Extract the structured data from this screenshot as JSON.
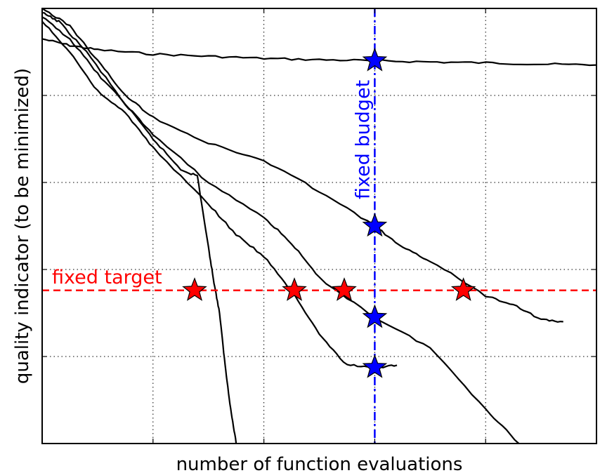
{
  "chart_data": {
    "type": "line",
    "xlabel": "number of function evaluations",
    "ylabel": "quality indicator (to be minimized)",
    "xlim": [
      0,
      10
    ],
    "ylim": [
      0,
      10
    ],
    "grid": true,
    "x_ticks": [
      0,
      2,
      4,
      6,
      8,
      10
    ],
    "y_ticks": [
      0,
      2,
      4,
      6,
      8,
      10
    ],
    "fixed_target": {
      "label": "fixed target",
      "y": 3.52,
      "color": "#ff0000"
    },
    "fixed_budget": {
      "label": "fixed budget",
      "x": 6.0,
      "color": "#0000ff"
    },
    "series": [
      {
        "x": [
          0,
          0.5,
          1.0,
          2.0,
          3.0,
          4.0,
          5.0,
          6.0,
          7.0,
          8.0,
          9.0,
          10.0
        ],
        "y": [
          9.3,
          9.15,
          9.05,
          8.95,
          8.9,
          8.85,
          8.82,
          8.8,
          8.77,
          8.75,
          8.72,
          8.7
        ]
      },
      {
        "x": [
          0,
          0.3,
          0.8,
          1.5,
          2.0,
          2.5,
          2.8,
          3.0,
          3.1,
          3.2,
          3.3,
          3.4,
          3.5
        ],
        "y": [
          9.9,
          9.7,
          9.0,
          7.8,
          7.0,
          6.3,
          6.15,
          4.5,
          3.7,
          3.0,
          1.8,
          0.8,
          0.0
        ]
      },
      {
        "x": [
          0,
          0.5,
          1.0,
          1.5,
          2.0,
          3.0,
          4.0,
          5.0,
          6.0,
          6.5,
          7.0,
          8.0,
          8.5,
          9.0,
          9.4
        ],
        "y": [
          10.0,
          9.6,
          8.8,
          8.0,
          7.5,
          6.9,
          6.5,
          5.8,
          5.0,
          4.5,
          4.2,
          3.4,
          3.2,
          2.85,
          2.8
        ]
      },
      {
        "x": [
          0,
          0.5,
          1.0,
          1.5,
          2.0,
          3.0,
          4.0,
          4.5,
          5.0,
          6.0,
          7.0,
          8.0,
          8.6
        ],
        "y": [
          9.8,
          9.3,
          8.5,
          7.8,
          7.1,
          6.0,
          5.2,
          4.6,
          3.8,
          2.9,
          2.2,
          0.8,
          0.0
        ]
      },
      {
        "x": [
          0,
          0.5,
          1.0,
          1.5,
          2.0,
          3.0,
          3.5,
          4.0,
          4.5,
          5.0,
          5.5,
          6.0,
          6.4
        ],
        "y": [
          9.7,
          9.0,
          8.1,
          7.6,
          6.8,
          5.5,
          4.8,
          4.3,
          3.5,
          2.5,
          1.8,
          1.75,
          1.8
        ]
      }
    ],
    "target_hits": [
      {
        "x": 2.75,
        "y": 3.52
      },
      {
        "x": 4.55,
        "y": 3.52
      },
      {
        "x": 5.45,
        "y": 3.52
      },
      {
        "x": 7.6,
        "y": 3.52
      }
    ],
    "budget_hits": [
      {
        "x": 6.0,
        "y": 8.8
      },
      {
        "x": 6.0,
        "y": 5.0
      },
      {
        "x": 6.0,
        "y": 2.9
      },
      {
        "x": 6.0,
        "y": 1.75
      }
    ],
    "colors": {
      "curves": "#000000",
      "target": "#ff0000",
      "budget": "#0000ff",
      "grid": "#000000"
    }
  }
}
